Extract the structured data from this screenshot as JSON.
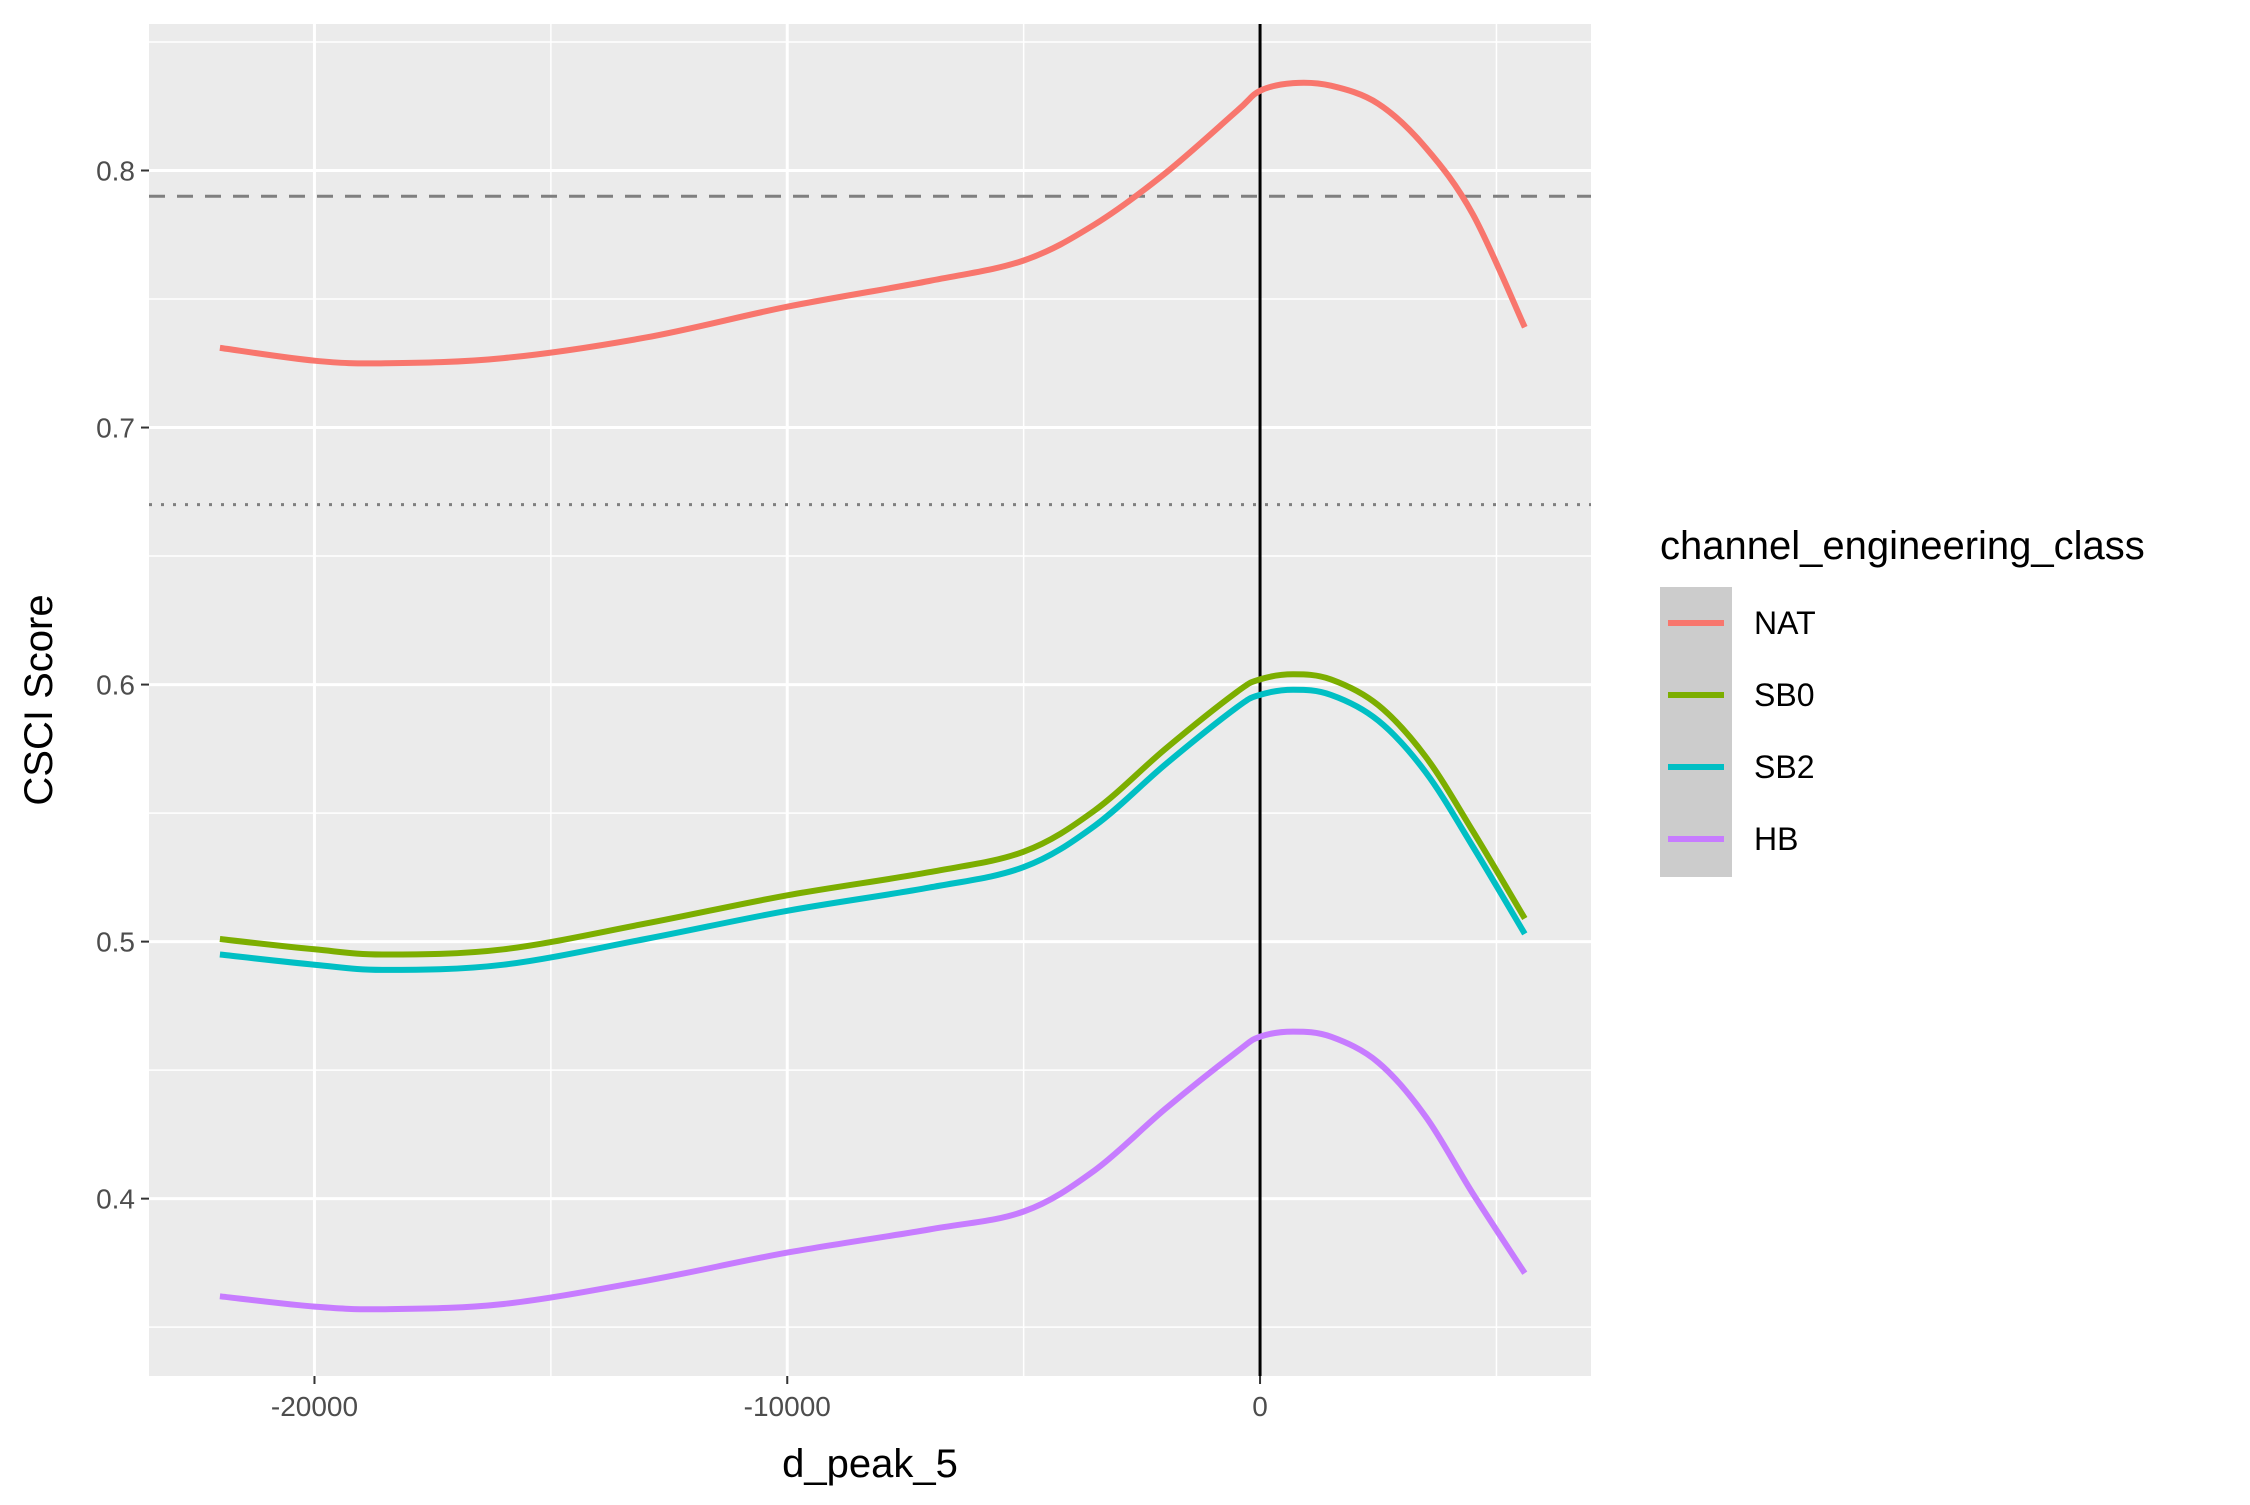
{
  "chart_data": {
    "type": "line",
    "title": "",
    "xlabel": "d_peak_5",
    "ylabel": "CSCI Score",
    "xlim": [
      -23500,
      7000
    ],
    "ylim": [
      0.331,
      0.857
    ],
    "x_ticks": [
      -20000,
      -10000,
      0
    ],
    "x_tick_labels": [
      "-20000",
      "-10000",
      "0"
    ],
    "x_minor_ticks": [
      -15000,
      -5000,
      5000
    ],
    "y_ticks": [
      0.4,
      0.5,
      0.6,
      0.7,
      0.8
    ],
    "y_tick_labels": [
      "0.4",
      "0.5",
      "0.6",
      "0.7",
      "0.8"
    ],
    "y_minor_ticks": [
      0.35,
      0.45,
      0.55,
      0.65,
      0.75,
      0.85
    ],
    "grid": true,
    "legend": {
      "title": "channel_engineering_class",
      "position": "right"
    },
    "reference_lines": [
      {
        "orientation": "vertical",
        "value": 0,
        "style": "solid",
        "color": "#000000"
      },
      {
        "orientation": "horizontal",
        "value": 0.79,
        "style": "dashed",
        "color": "#7f7f7f"
      },
      {
        "orientation": "horizontal",
        "value": 0.67,
        "style": "dotted",
        "color": "#7f7f7f"
      }
    ],
    "series": [
      {
        "name": "NAT",
        "color": "#F8766D",
        "points": [
          [
            -22000,
            0.731
          ],
          [
            -20000,
            0.726
          ],
          [
            -18500,
            0.725
          ],
          [
            -16000,
            0.727
          ],
          [
            -13000,
            0.735
          ],
          [
            -10000,
            0.747
          ],
          [
            -7000,
            0.757
          ],
          [
            -5000,
            0.765
          ],
          [
            -3500,
            0.779
          ],
          [
            -2000,
            0.799
          ],
          [
            -500,
            0.823
          ],
          [
            0,
            0.831
          ],
          [
            700,
            0.834
          ],
          [
            1500,
            0.833
          ],
          [
            2500,
            0.826
          ],
          [
            3500,
            0.809
          ],
          [
            4500,
            0.783
          ],
          [
            5600,
            0.739
          ]
        ]
      },
      {
        "name": "SB0",
        "color": "#7CAE00",
        "points": [
          [
            -22000,
            0.501
          ],
          [
            -20000,
            0.497
          ],
          [
            -18500,
            0.495
          ],
          [
            -16000,
            0.497
          ],
          [
            -13000,
            0.507
          ],
          [
            -10000,
            0.518
          ],
          [
            -7000,
            0.527
          ],
          [
            -5000,
            0.535
          ],
          [
            -3500,
            0.551
          ],
          [
            -2000,
            0.575
          ],
          [
            -500,
            0.597
          ],
          [
            0,
            0.602
          ],
          [
            700,
            0.604
          ],
          [
            1500,
            0.602
          ],
          [
            2500,
            0.592
          ],
          [
            3500,
            0.572
          ],
          [
            4500,
            0.543
          ],
          [
            5600,
            0.509
          ]
        ]
      },
      {
        "name": "SB2",
        "color": "#00BFC4",
        "points": [
          [
            -22000,
            0.495
          ],
          [
            -20000,
            0.491
          ],
          [
            -18500,
            0.489
          ],
          [
            -16000,
            0.491
          ],
          [
            -13000,
            0.501
          ],
          [
            -10000,
            0.512
          ],
          [
            -7000,
            0.521
          ],
          [
            -5000,
            0.529
          ],
          [
            -3500,
            0.545
          ],
          [
            -2000,
            0.569
          ],
          [
            -500,
            0.591
          ],
          [
            0,
            0.596
          ],
          [
            700,
            0.598
          ],
          [
            1500,
            0.596
          ],
          [
            2500,
            0.586
          ],
          [
            3500,
            0.566
          ],
          [
            4500,
            0.537
          ],
          [
            5600,
            0.503
          ]
        ]
      },
      {
        "name": "HB",
        "color": "#C77CFF",
        "points": [
          [
            -22000,
            0.362
          ],
          [
            -20000,
            0.358
          ],
          [
            -18500,
            0.357
          ],
          [
            -16000,
            0.359
          ],
          [
            -13000,
            0.368
          ],
          [
            -10000,
            0.379
          ],
          [
            -7000,
            0.388
          ],
          [
            -5000,
            0.395
          ],
          [
            -3500,
            0.411
          ],
          [
            -2000,
            0.435
          ],
          [
            -500,
            0.457
          ],
          [
            0,
            0.463
          ],
          [
            700,
            0.465
          ],
          [
            1500,
            0.463
          ],
          [
            2500,
            0.453
          ],
          [
            3500,
            0.432
          ],
          [
            4500,
            0.402
          ],
          [
            5600,
            0.371
          ]
        ]
      }
    ]
  }
}
